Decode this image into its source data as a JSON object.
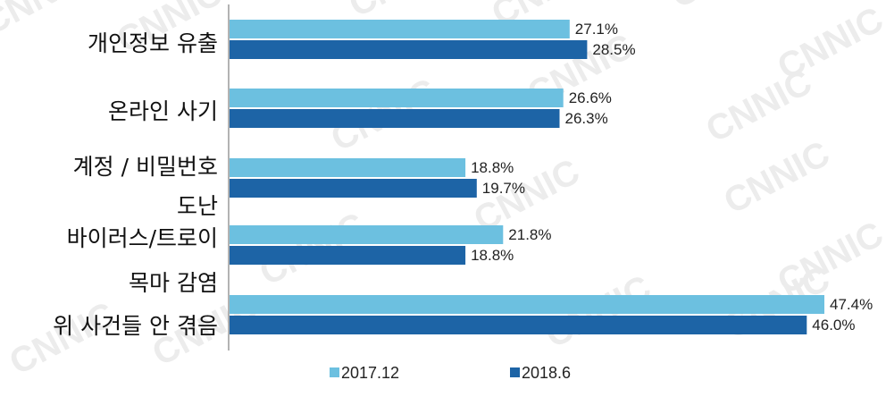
{
  "watermark": "CNNIC",
  "chart_data": {
    "type": "bar",
    "orientation": "horizontal",
    "categories": [
      [
        "개인정보 유출"
      ],
      [
        "온라인 사기"
      ],
      [
        "계정 / 비밀번호",
        "도난"
      ],
      [
        "바이러스/트로이",
        "목마 감염"
      ],
      [
        "위 사건들 안 겪음"
      ]
    ],
    "series": [
      {
        "name": "2017.12",
        "color": "#6cc0e0",
        "values": [
          27.1,
          26.6,
          18.8,
          21.8,
          47.4
        ],
        "labels": [
          "27.1%",
          "26.6%",
          "18.8%",
          "21.8%",
          "47.4%"
        ]
      },
      {
        "name": "2018.6",
        "color": "#1d64a6",
        "values": [
          28.5,
          26.3,
          19.7,
          18.8,
          46.0
        ],
        "labels": [
          "28.5%",
          "26.3%",
          "19.7%",
          "18.8%",
          "46.0%"
        ]
      }
    ],
    "xlim": [
      0,
      50
    ],
    "grid": false,
    "legend_position": "bottom"
  }
}
